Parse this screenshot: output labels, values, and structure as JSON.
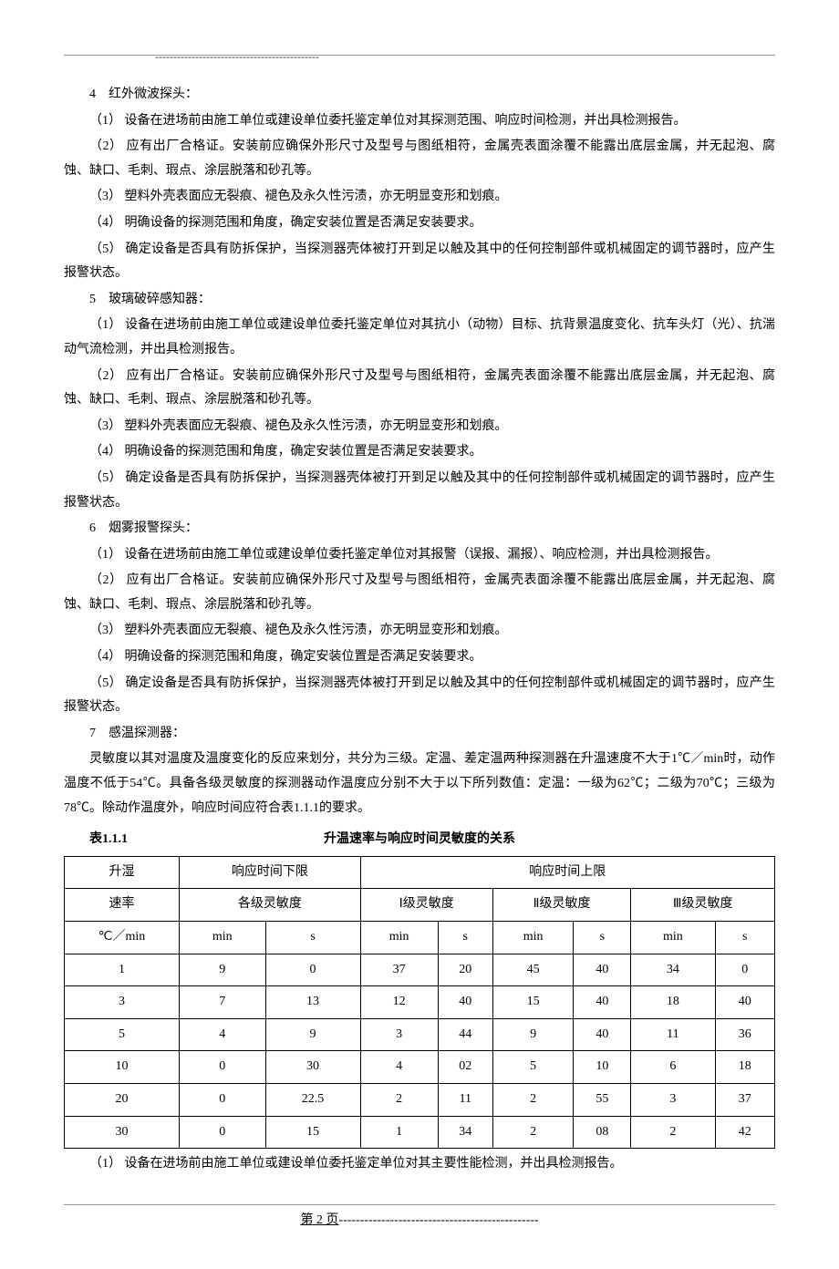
{
  "sections": {
    "s4": {
      "title": "4　红外微波探头：",
      "items": [
        "（1） 设备在进场前由施工单位或建设单位委托鉴定单位对其探测范围、响应时间检测，并出具检测报告。",
        "（2） 应有出厂合格证。安装前应确保外形尺寸及型号与图纸相符，金属壳表面涂覆不能露出底层金属，并无起泡、腐蚀、缺口、毛刺、瑕点、涂层脱落和砂孔等。",
        "（3） 塑料外壳表面应无裂痕、褪色及永久性污渍，亦无明显变形和划痕。",
        "（4） 明确设备的探测范围和角度，确定安装位置是否满足安装要求。",
        "（5） 确定设备是否具有防拆保护，当探测器壳体被打开到足以触及其中的任何控制部件或机械固定的调节器时，应产生报警状态。"
      ]
    },
    "s5": {
      "title": "5　玻璃破碎感知器：",
      "items": [
        "（1） 设备在进场前由施工单位或建设单位委托鉴定单位对其抗小（动物）目标、抗背景温度变化、抗车头灯（光）、抗湍动气流检测，并出具检测报告。",
        "（2） 应有出厂合格证。安装前应确保外形尺寸及型号与图纸相符，金属壳表面涂覆不能露出底层金属，并无起泡、腐蚀、缺口、毛刺、瑕点、涂层脱落和砂孔等。",
        "（3） 塑料外壳表面应无裂痕、褪色及永久性污渍，亦无明显变形和划痕。",
        "（4） 明确设备的探测范围和角度，确定安装位置是否满足安装要求。",
        "（5） 确定设备是否具有防拆保护，当探测器壳体被打开到足以触及其中的任何控制部件或机械固定的调节器时，应产生报警状态。"
      ]
    },
    "s6": {
      "title": "6　烟雾报警探头：",
      "items": [
        "（1） 设备在进场前由施工单位或建设单位委托鉴定单位对其报警（误报、漏报）、响应检测，并出具检测报告。",
        "（2） 应有出厂合格证。安装前应确保外形尺寸及型号与图纸相符，金属壳表面涂覆不能露出底层金属，并无起泡、腐蚀、缺口、毛刺、瑕点、涂层脱落和砂孔等。",
        "（3） 塑料外壳表面应无裂痕、褪色及永久性污渍，亦无明显变形和划痕。",
        "（4） 明确设备的探测范围和角度，确定安装位置是否满足安装要求。",
        "（5） 确定设备是否具有防拆保护，当探测器壳体被打开到足以触及其中的任何控制部件或机械固定的调节器时，应产生报警状态。"
      ]
    },
    "s7": {
      "title": "7　感温探测器：",
      "intro": "灵敏度以其对温度及温度变化的反应来划分，共分为三级。定温、差定温两种探测器在升温速度不大于1℃／min时，动作温度不低于54℃。具备各级灵敏度的探测器动作温度应分别不大于以下所列数值：定温：一级为62℃；二级为70℃；三级为78℃。除动作温度外，响应时间应符合表1.1.1的要求。",
      "after_table": "（1） 设备在进场前由施工单位或建设单位委托鉴定单位对其主要性能检测，并出具检测报告。"
    }
  },
  "table": {
    "label": "表1.1.1",
    "caption": "升温速率与响应时间灵敏度的关系",
    "headers": {
      "col1_line1": "升湿",
      "col1_line2": "速率",
      "col1_line3": "℃／min",
      "lower": "响应时间下限",
      "upper": "响应时间上限",
      "all_sens": "各级灵敏度",
      "sens1": "Ⅰ级灵敏度",
      "sens2": "Ⅱ级灵敏度",
      "sens3": "Ⅲ级灵敏度",
      "min": "min",
      "s": "s"
    },
    "rows": [
      {
        "rate": "1",
        "low_min": "9",
        "low_s": "0",
        "s1_min": "37",
        "s1_s": "20",
        "s2_min": "45",
        "s2_s": "40",
        "s3_min": "34",
        "s3_s": "0"
      },
      {
        "rate": "3",
        "low_min": "7",
        "low_s": "13",
        "s1_min": "12",
        "s1_s": "40",
        "s2_min": "15",
        "s2_s": "40",
        "s3_min": "18",
        "s3_s": "40"
      },
      {
        "rate": "5",
        "low_min": "4",
        "low_s": "9",
        "s1_min": "3",
        "s1_s": "44",
        "s2_min": "9",
        "s2_s": "40",
        "s3_min": "11",
        "s3_s": "36"
      },
      {
        "rate": "10",
        "low_min": "0",
        "low_s": "30",
        "s1_min": "4",
        "s1_s": "02",
        "s2_min": "5",
        "s2_s": "10",
        "s3_min": "6",
        "s3_s": "18"
      },
      {
        "rate": "20",
        "low_min": "0",
        "low_s": "22.5",
        "s1_min": "2",
        "s1_s": "11",
        "s2_min": "2",
        "s2_s": "55",
        "s3_min": "3",
        "s3_s": "37"
      },
      {
        "rate": "30",
        "low_min": "0",
        "low_s": "15",
        "s1_min": "1",
        "s1_s": "34",
        "s2_min": "2",
        "s2_s": "08",
        "s3_min": "2",
        "s3_s": "42"
      }
    ]
  },
  "footer": {
    "page_label": "第 2 页",
    "dashes": "-----------------------------------------------"
  }
}
